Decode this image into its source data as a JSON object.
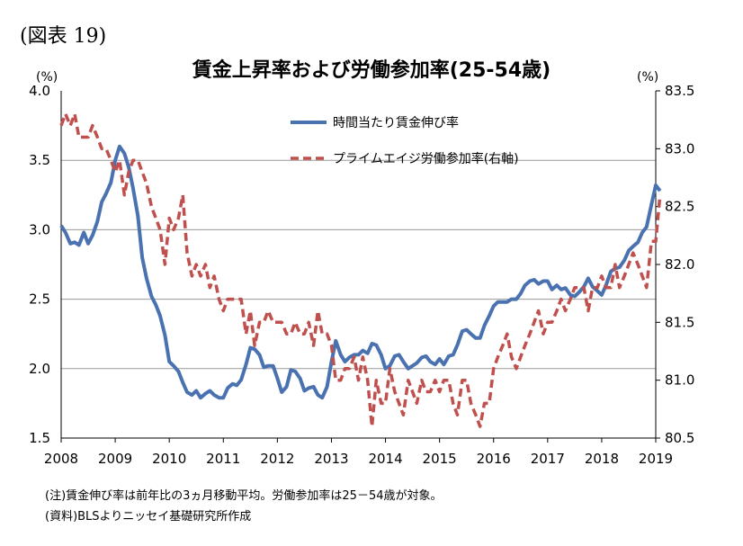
{
  "figure_label": "(図表 19)",
  "chart_data": {
    "type": "line",
    "title": "賃金上昇率および労働参加率(25-54歳)",
    "y_unit_left": "(%)",
    "y_unit_right": "(%)",
    "x_range": [
      2008.0,
      2019.0
    ],
    "x_tick_labels": [
      "2008",
      "2009",
      "2010",
      "2011",
      "2012",
      "2013",
      "2014",
      "2015",
      "2016",
      "2017",
      "2018",
      "2019"
    ],
    "y_left": {
      "range": [
        1.5,
        4.0
      ],
      "ticks": [
        "1.5",
        "2.0",
        "2.5",
        "3.0",
        "3.5",
        "4.0"
      ]
    },
    "y_right": {
      "range": [
        80.5,
        83.5
      ],
      "ticks": [
        "80.5",
        "81.0",
        "81.5",
        "82.0",
        "82.5",
        "83.0",
        "83.5"
      ]
    },
    "grid": "horizontal",
    "legend_position": "top-right",
    "colors": {
      "wage": "#4a72b0",
      "participation": "#c0504d"
    },
    "series": [
      {
        "name": "時間当たり賃金伸び率",
        "axis": "left",
        "style": "solid",
        "points": [
          [
            2008.0,
            3.03
          ],
          [
            2008.08,
            2.98
          ],
          [
            2008.17,
            2.9
          ],
          [
            2008.25,
            2.91
          ],
          [
            2008.33,
            2.89
          ],
          [
            2008.42,
            2.98
          ],
          [
            2008.5,
            2.9
          ],
          [
            2008.58,
            2.96
          ],
          [
            2008.67,
            3.06
          ],
          [
            2008.75,
            3.2
          ],
          [
            2008.83,
            3.26
          ],
          [
            2008.92,
            3.34
          ],
          [
            2009.0,
            3.5
          ],
          [
            2009.08,
            3.6
          ],
          [
            2009.17,
            3.55
          ],
          [
            2009.25,
            3.45
          ],
          [
            2009.33,
            3.3
          ],
          [
            2009.42,
            3.1
          ],
          [
            2009.5,
            2.8
          ],
          [
            2009.58,
            2.65
          ],
          [
            2009.67,
            2.52
          ],
          [
            2009.75,
            2.46
          ],
          [
            2009.83,
            2.38
          ],
          [
            2009.92,
            2.24
          ],
          [
            2010.0,
            2.05
          ],
          [
            2010.08,
            2.02
          ],
          [
            2010.17,
            1.98
          ],
          [
            2010.25,
            1.9
          ],
          [
            2010.33,
            1.83
          ],
          [
            2010.42,
            1.81
          ],
          [
            2010.5,
            1.84
          ],
          [
            2010.58,
            1.79
          ],
          [
            2010.67,
            1.82
          ],
          [
            2010.75,
            1.84
          ],
          [
            2010.83,
            1.81
          ],
          [
            2010.92,
            1.79
          ],
          [
            2011.0,
            1.79
          ],
          [
            2011.08,
            1.86
          ],
          [
            2011.17,
            1.89
          ],
          [
            2011.25,
            1.88
          ],
          [
            2011.33,
            1.92
          ],
          [
            2011.42,
            2.03
          ],
          [
            2011.5,
            2.15
          ],
          [
            2011.58,
            2.14
          ],
          [
            2011.67,
            2.1
          ],
          [
            2011.75,
            2.01
          ],
          [
            2011.83,
            2.02
          ],
          [
            2011.92,
            2.02
          ],
          [
            2012.0,
            1.93
          ],
          [
            2012.08,
            1.83
          ],
          [
            2012.17,
            1.87
          ],
          [
            2012.25,
            1.99
          ],
          [
            2012.33,
            1.98
          ],
          [
            2012.42,
            1.93
          ],
          [
            2012.5,
            1.84
          ],
          [
            2012.58,
            1.86
          ],
          [
            2012.67,
            1.87
          ],
          [
            2012.75,
            1.81
          ],
          [
            2012.83,
            1.79
          ],
          [
            2012.92,
            1.87
          ],
          [
            2013.0,
            2.05
          ],
          [
            2013.08,
            2.2
          ],
          [
            2013.17,
            2.1
          ],
          [
            2013.25,
            2.05
          ],
          [
            2013.33,
            2.08
          ],
          [
            2013.42,
            2.1
          ],
          [
            2013.5,
            2.1
          ],
          [
            2013.58,
            2.13
          ],
          [
            2013.67,
            2.11
          ],
          [
            2013.75,
            2.18
          ],
          [
            2013.83,
            2.17
          ],
          [
            2013.92,
            2.1
          ],
          [
            2014.0,
            2.0
          ],
          [
            2014.08,
            2.02
          ],
          [
            2014.17,
            2.09
          ],
          [
            2014.25,
            2.1
          ],
          [
            2014.33,
            2.05
          ],
          [
            2014.42,
            2.0
          ],
          [
            2014.5,
            2.02
          ],
          [
            2014.58,
            2.04
          ],
          [
            2014.67,
            2.08
          ],
          [
            2014.75,
            2.09
          ],
          [
            2014.83,
            2.05
          ],
          [
            2014.92,
            2.03
          ],
          [
            2015.0,
            2.07
          ],
          [
            2015.08,
            2.03
          ],
          [
            2015.17,
            2.09
          ],
          [
            2015.25,
            2.1
          ],
          [
            2015.33,
            2.17
          ],
          [
            2015.42,
            2.27
          ],
          [
            2015.5,
            2.28
          ],
          [
            2015.58,
            2.25
          ],
          [
            2015.67,
            2.22
          ],
          [
            2015.75,
            2.22
          ],
          [
            2015.83,
            2.31
          ],
          [
            2015.92,
            2.38
          ],
          [
            2016.0,
            2.45
          ],
          [
            2016.08,
            2.48
          ],
          [
            2016.17,
            2.48
          ],
          [
            2016.25,
            2.48
          ],
          [
            2016.33,
            2.5
          ],
          [
            2016.42,
            2.5
          ],
          [
            2016.5,
            2.54
          ],
          [
            2016.58,
            2.6
          ],
          [
            2016.67,
            2.63
          ],
          [
            2016.75,
            2.64
          ],
          [
            2016.83,
            2.61
          ],
          [
            2016.92,
            2.63
          ],
          [
            2017.0,
            2.63
          ],
          [
            2017.08,
            2.57
          ],
          [
            2017.17,
            2.6
          ],
          [
            2017.25,
            2.57
          ],
          [
            2017.33,
            2.58
          ],
          [
            2017.42,
            2.53
          ],
          [
            2017.5,
            2.52
          ],
          [
            2017.58,
            2.55
          ],
          [
            2017.67,
            2.59
          ],
          [
            2017.75,
            2.65
          ],
          [
            2017.83,
            2.59
          ],
          [
            2017.92,
            2.56
          ],
          [
            2018.0,
            2.53
          ],
          [
            2018.08,
            2.6
          ],
          [
            2018.17,
            2.7
          ],
          [
            2018.25,
            2.72
          ],
          [
            2018.33,
            2.73
          ],
          [
            2018.42,
            2.78
          ],
          [
            2018.5,
            2.85
          ],
          [
            2018.58,
            2.88
          ],
          [
            2018.67,
            2.91
          ],
          [
            2018.75,
            2.98
          ],
          [
            2018.83,
            3.02
          ],
          [
            2018.92,
            3.18
          ],
          [
            2019.0,
            3.32
          ],
          [
            2019.08,
            3.28
          ]
        ]
      },
      {
        "name": "プライムエイジ労働参加率(右軸)",
        "axis": "right",
        "style": "dashed",
        "points": [
          [
            2008.0,
            83.2
          ],
          [
            2008.08,
            83.3
          ],
          [
            2008.17,
            83.2
          ],
          [
            2008.25,
            83.3
          ],
          [
            2008.33,
            83.1
          ],
          [
            2008.42,
            83.1
          ],
          [
            2008.5,
            83.1
          ],
          [
            2008.58,
            83.2
          ],
          [
            2008.67,
            83.1
          ],
          [
            2008.75,
            83.0
          ],
          [
            2008.83,
            83.0
          ],
          [
            2008.92,
            82.9
          ],
          [
            2009.0,
            82.8
          ],
          [
            2009.08,
            82.9
          ],
          [
            2009.17,
            82.6
          ],
          [
            2009.25,
            82.8
          ],
          [
            2009.33,
            82.9
          ],
          [
            2009.42,
            82.9
          ],
          [
            2009.5,
            82.8
          ],
          [
            2009.58,
            82.7
          ],
          [
            2009.67,
            82.5
          ],
          [
            2009.75,
            82.4
          ],
          [
            2009.83,
            82.3
          ],
          [
            2009.92,
            82.0
          ],
          [
            2010.0,
            82.4
          ],
          [
            2010.08,
            82.3
          ],
          [
            2010.17,
            82.4
          ],
          [
            2010.25,
            82.6
          ],
          [
            2010.33,
            82.1
          ],
          [
            2010.42,
            81.9
          ],
          [
            2010.5,
            82.0
          ],
          [
            2010.58,
            81.9
          ],
          [
            2010.67,
            82.0
          ],
          [
            2010.75,
            81.8
          ],
          [
            2010.83,
            81.9
          ],
          [
            2010.92,
            81.7
          ],
          [
            2011.0,
            81.6
          ],
          [
            2011.08,
            81.7
          ],
          [
            2011.17,
            81.7
          ],
          [
            2011.25,
            81.7
          ],
          [
            2011.33,
            81.7
          ],
          [
            2011.42,
            81.4
          ],
          [
            2011.5,
            81.6
          ],
          [
            2011.58,
            81.3
          ],
          [
            2011.67,
            81.5
          ],
          [
            2011.75,
            81.5
          ],
          [
            2011.83,
            81.6
          ],
          [
            2011.92,
            81.5
          ],
          [
            2012.0,
            81.5
          ],
          [
            2012.08,
            81.5
          ],
          [
            2012.17,
            81.4
          ],
          [
            2012.25,
            81.4
          ],
          [
            2012.33,
            81.5
          ],
          [
            2012.42,
            81.4
          ],
          [
            2012.5,
            81.4
          ],
          [
            2012.58,
            81.5
          ],
          [
            2012.67,
            81.3
          ],
          [
            2012.75,
            81.6
          ],
          [
            2012.83,
            81.4
          ],
          [
            2012.92,
            81.4
          ],
          [
            2013.0,
            81.3
          ],
          [
            2013.08,
            81.0
          ],
          [
            2013.17,
            81.0
          ],
          [
            2013.25,
            81.1
          ],
          [
            2013.33,
            81.1
          ],
          [
            2013.42,
            81.2
          ],
          [
            2013.5,
            81.0
          ],
          [
            2013.58,
            81.2
          ],
          [
            2013.67,
            81.0
          ],
          [
            2013.75,
            80.6
          ],
          [
            2013.83,
            81.0
          ],
          [
            2013.92,
            80.8
          ],
          [
            2014.0,
            80.8
          ],
          [
            2014.08,
            81.1
          ],
          [
            2014.17,
            80.9
          ],
          [
            2014.25,
            80.8
          ],
          [
            2014.33,
            80.7
          ],
          [
            2014.42,
            81.0
          ],
          [
            2014.5,
            80.9
          ],
          [
            2014.58,
            80.8
          ],
          [
            2014.67,
            81.0
          ],
          [
            2014.75,
            80.9
          ],
          [
            2014.83,
            80.9
          ],
          [
            2014.92,
            81.0
          ],
          [
            2015.0,
            80.9
          ],
          [
            2015.08,
            81.0
          ],
          [
            2015.17,
            81.0
          ],
          [
            2015.25,
            80.8
          ],
          [
            2015.33,
            80.7
          ],
          [
            2015.42,
            81.0
          ],
          [
            2015.5,
            81.0
          ],
          [
            2015.58,
            80.8
          ],
          [
            2015.67,
            80.7
          ],
          [
            2015.75,
            80.6
          ],
          [
            2015.83,
            80.8
          ],
          [
            2015.92,
            80.8
          ],
          [
            2016.0,
            81.1
          ],
          [
            2016.08,
            81.2
          ],
          [
            2016.17,
            81.3
          ],
          [
            2016.25,
            81.4
          ],
          [
            2016.33,
            81.2
          ],
          [
            2016.42,
            81.1
          ],
          [
            2016.5,
            81.2
          ],
          [
            2016.58,
            81.3
          ],
          [
            2016.67,
            81.4
          ],
          [
            2016.75,
            81.5
          ],
          [
            2016.83,
            81.6
          ],
          [
            2016.92,
            81.4
          ],
          [
            2017.0,
            81.5
          ],
          [
            2017.08,
            81.5
          ],
          [
            2017.17,
            81.6
          ],
          [
            2017.25,
            81.7
          ],
          [
            2017.33,
            81.6
          ],
          [
            2017.42,
            81.7
          ],
          [
            2017.5,
            81.8
          ],
          [
            2017.58,
            81.8
          ],
          [
            2017.67,
            81.8
          ],
          [
            2017.75,
            81.6
          ],
          [
            2017.83,
            81.8
          ],
          [
            2017.92,
            81.8
          ],
          [
            2018.0,
            81.9
          ],
          [
            2018.08,
            81.8
          ],
          [
            2018.17,
            81.8
          ],
          [
            2018.25,
            82.0
          ],
          [
            2018.33,
            81.8
          ],
          [
            2018.42,
            81.9
          ],
          [
            2018.5,
            82.0
          ],
          [
            2018.58,
            82.1
          ],
          [
            2018.67,
            82.0
          ],
          [
            2018.75,
            81.9
          ],
          [
            2018.83,
            81.8
          ],
          [
            2018.92,
            82.2
          ],
          [
            2019.0,
            82.2
          ],
          [
            2019.08,
            82.6
          ]
        ]
      }
    ]
  },
  "notes": [
    "(注)賃金伸び率は前年比の3ヵ月移動平均。労働参加率は25－54歳が対象。",
    "(資料)BLSよりニッセイ基礎研究所作成"
  ]
}
